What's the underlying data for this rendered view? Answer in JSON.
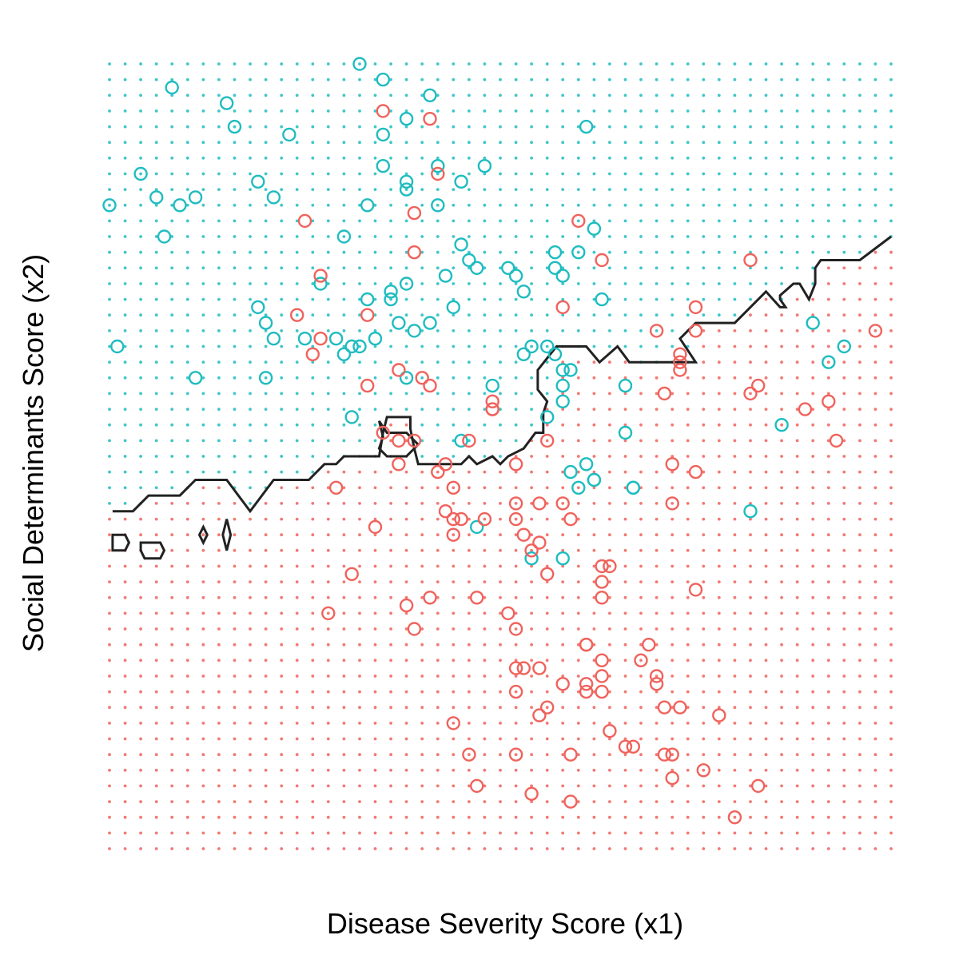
{
  "chart_data": {
    "type": "scatter",
    "title": "",
    "xlabel": "Disease Severity Score (x1)",
    "ylabel": "Social Determinants Score (x2)",
    "xlim": [
      0,
      1
    ],
    "ylim": [
      0,
      1
    ],
    "axis_ticks": "none",
    "grid": false,
    "legend": "none",
    "colors": {
      "teal": "#1ebcc0",
      "red": "#f0625c",
      "boundary": "#222222"
    },
    "background_grid": {
      "description": "dotted decision-region grid; dots above boundary teal, below red",
      "nx": 50,
      "ny": 50
    },
    "decision_boundary": {
      "main": [
        [
          0.004,
          0.43
        ],
        [
          0.03,
          0.43
        ],
        [
          0.05,
          0.45
        ],
        [
          0.09,
          0.45
        ],
        [
          0.11,
          0.47
        ],
        [
          0.15,
          0.47
        ],
        [
          0.18,
          0.43
        ],
        [
          0.21,
          0.47
        ],
        [
          0.255,
          0.47
        ],
        [
          0.275,
          0.49
        ],
        [
          0.29,
          0.49
        ],
        [
          0.3,
          0.5
        ],
        [
          0.345,
          0.5
        ],
        [
          0.35,
          0.53
        ],
        [
          0.355,
          0.55
        ],
        [
          0.385,
          0.55
        ],
        [
          0.385,
          0.535
        ],
        [
          0.39,
          0.51
        ],
        [
          0.395,
          0.49
        ],
        [
          0.42,
          0.49
        ],
        [
          0.45,
          0.49
        ],
        [
          0.46,
          0.5
        ],
        [
          0.47,
          0.49
        ],
        [
          0.49,
          0.5
        ],
        [
          0.5,
          0.49
        ],
        [
          0.51,
          0.5
        ],
        [
          0.53,
          0.51
        ],
        [
          0.545,
          0.53
        ],
        [
          0.555,
          0.53
        ],
        [
          0.555,
          0.555
        ],
        [
          0.56,
          0.57
        ],
        [
          0.548,
          0.585
        ],
        [
          0.548,
          0.61
        ],
        [
          0.572,
          0.64
        ],
        [
          0.61,
          0.64
        ],
        [
          0.627,
          0.62
        ],
        [
          0.65,
          0.64
        ],
        [
          0.665,
          0.62
        ],
        [
          0.75,
          0.62
        ],
        [
          0.73,
          0.65
        ],
        [
          0.75,
          0.67
        ],
        [
          0.8,
          0.67
        ],
        [
          0.84,
          0.71
        ],
        [
          0.858,
          0.69
        ],
        [
          0.865,
          0.69
        ],
        [
          0.858,
          0.7
        ],
        [
          0.858,
          0.705
        ],
        [
          0.875,
          0.72
        ],
        [
          0.883,
          0.72
        ],
        [
          0.895,
          0.7
        ],
        [
          0.903,
          0.72
        ],
        [
          0.903,
          0.74
        ],
        [
          0.91,
          0.75
        ],
        [
          0.925,
          0.75
        ],
        [
          0.96,
          0.75
        ],
        [
          1.0,
          0.78
        ]
      ],
      "island_upper": [
        [
          0.345,
          0.545
        ],
        [
          0.355,
          0.53
        ],
        [
          0.38,
          0.53
        ],
        [
          0.395,
          0.515
        ],
        [
          0.38,
          0.5
        ],
        [
          0.355,
          0.5
        ],
        [
          0.345,
          0.51
        ],
        [
          0.35,
          0.525
        ]
      ],
      "island_left_1": [
        [
          0.004,
          0.4
        ],
        [
          0.02,
          0.4
        ],
        [
          0.025,
          0.39
        ],
        [
          0.02,
          0.38
        ],
        [
          0.004,
          0.38
        ]
      ],
      "island_left_2": [
        [
          0.04,
          0.39
        ],
        [
          0.065,
          0.39
        ],
        [
          0.07,
          0.38
        ],
        [
          0.065,
          0.37
        ],
        [
          0.045,
          0.37
        ],
        [
          0.04,
          0.38
        ]
      ],
      "island_left_3": [
        [
          0.12,
          0.41
        ],
        [
          0.115,
          0.4
        ],
        [
          0.12,
          0.39
        ],
        [
          0.125,
          0.4
        ]
      ],
      "island_left_4": [
        [
          0.15,
          0.42
        ],
        [
          0.145,
          0.4
        ],
        [
          0.15,
          0.38
        ],
        [
          0.155,
          0.4
        ]
      ]
    },
    "series": [
      {
        "class": "teal",
        "points": [
          [
            0.32,
            1.0
          ],
          [
            0.35,
            0.98
          ],
          [
            0.08,
            0.97
          ],
          [
            0.15,
            0.95
          ],
          [
            0.41,
            0.96
          ],
          [
            0.16,
            0.92
          ],
          [
            0.23,
            0.91
          ],
          [
            0.38,
            0.93
          ],
          [
            0.35,
            0.91
          ],
          [
            0.61,
            0.92
          ],
          [
            0.04,
            0.86
          ],
          [
            0.35,
            0.87
          ],
          [
            0.42,
            0.87
          ],
          [
            0.48,
            0.87
          ],
          [
            0.19,
            0.85
          ],
          [
            0.38,
            0.85
          ],
          [
            0.06,
            0.83
          ],
          [
            0.11,
            0.83
          ],
          [
            0.38,
            0.84
          ],
          [
            0.45,
            0.85
          ],
          [
            0.0,
            0.82
          ],
          [
            0.09,
            0.82
          ],
          [
            0.21,
            0.83
          ],
          [
            0.33,
            0.82
          ],
          [
            0.42,
            0.82
          ],
          [
            0.62,
            0.79
          ],
          [
            0.07,
            0.78
          ],
          [
            0.3,
            0.78
          ],
          [
            0.45,
            0.77
          ],
          [
            0.46,
            0.75
          ],
          [
            0.57,
            0.76
          ],
          [
            0.6,
            0.76
          ],
          [
            0.47,
            0.74
          ],
          [
            0.51,
            0.74
          ],
          [
            0.27,
            0.72
          ],
          [
            0.38,
            0.72
          ],
          [
            0.57,
            0.74
          ],
          [
            0.58,
            0.73
          ],
          [
            0.36,
            0.71
          ],
          [
            0.43,
            0.73
          ],
          [
            0.52,
            0.73
          ],
          [
            0.53,
            0.71
          ],
          [
            0.36,
            0.7
          ],
          [
            0.33,
            0.7
          ],
          [
            0.19,
            0.69
          ],
          [
            0.44,
            0.69
          ],
          [
            0.63,
            0.7
          ],
          [
            0.2,
            0.67
          ],
          [
            0.37,
            0.67
          ],
          [
            0.41,
            0.67
          ],
          [
            0.39,
            0.66
          ],
          [
            0.21,
            0.65
          ],
          [
            0.25,
            0.65
          ],
          [
            0.29,
            0.65
          ],
          [
            0.32,
            0.64
          ],
          [
            0.31,
            0.64
          ],
          [
            0.34,
            0.65
          ],
          [
            0.3,
            0.63
          ],
          [
            0.54,
            0.64
          ],
          [
            0.56,
            0.64
          ],
          [
            0.53,
            0.63
          ],
          [
            0.57,
            0.63
          ],
          [
            0.01,
            0.64
          ],
          [
            0.11,
            0.6
          ],
          [
            0.2,
            0.6
          ],
          [
            0.38,
            0.6
          ],
          [
            0.59,
            0.61
          ],
          [
            0.49,
            0.59
          ],
          [
            0.58,
            0.61
          ],
          [
            0.58,
            0.59
          ],
          [
            0.66,
            0.59
          ],
          [
            0.31,
            0.55
          ],
          [
            0.45,
            0.52
          ],
          [
            0.58,
            0.57
          ],
          [
            0.56,
            0.55
          ],
          [
            0.66,
            0.53
          ],
          [
            0.86,
            0.54
          ],
          [
            0.59,
            0.48
          ],
          [
            0.61,
            0.49
          ],
          [
            0.62,
            0.47
          ],
          [
            0.62,
            0.47
          ],
          [
            0.6,
            0.46
          ],
          [
            0.67,
            0.46
          ],
          [
            0.67,
            0.46
          ],
          [
            0.82,
            0.43
          ],
          [
            0.47,
            0.41
          ],
          [
            0.54,
            0.37
          ],
          [
            0.58,
            0.37
          ],
          [
            0.9,
            0.67
          ],
          [
            0.94,
            0.64
          ],
          [
            0.92,
            0.62
          ]
        ]
      },
      {
        "class": "red",
        "points": [
          [
            0.35,
            0.94
          ],
          [
            0.41,
            0.93
          ],
          [
            0.42,
            0.86
          ],
          [
            0.39,
            0.81
          ],
          [
            0.25,
            0.8
          ],
          [
            0.6,
            0.8
          ],
          [
            0.39,
            0.76
          ],
          [
            0.63,
            0.75
          ],
          [
            0.27,
            0.73
          ],
          [
            0.82,
            0.75
          ],
          [
            0.75,
            0.69
          ],
          [
            0.24,
            0.68
          ],
          [
            0.33,
            0.68
          ],
          [
            0.58,
            0.69
          ],
          [
            0.7,
            0.66
          ],
          [
            0.75,
            0.66
          ],
          [
            0.27,
            0.65
          ],
          [
            0.26,
            0.63
          ],
          [
            0.73,
            0.63
          ],
          [
            0.73,
            0.62
          ],
          [
            0.37,
            0.61
          ],
          [
            0.4,
            0.6
          ],
          [
            0.33,
            0.59
          ],
          [
            0.41,
            0.59
          ],
          [
            0.73,
            0.61
          ],
          [
            0.49,
            0.57
          ],
          [
            0.49,
            0.56
          ],
          [
            0.71,
            0.58
          ],
          [
            0.83,
            0.59
          ],
          [
            0.98,
            0.66
          ],
          [
            0.82,
            0.58
          ],
          [
            0.89,
            0.56
          ],
          [
            0.92,
            0.57
          ],
          [
            0.49,
            0.56
          ],
          [
            0.35,
            0.53
          ],
          [
            0.37,
            0.52
          ],
          [
            0.39,
            0.52
          ],
          [
            0.46,
            0.52
          ],
          [
            0.56,
            0.52
          ],
          [
            0.37,
            0.49
          ],
          [
            0.43,
            0.49
          ],
          [
            0.52,
            0.49
          ],
          [
            0.42,
            0.48
          ],
          [
            0.72,
            0.49
          ],
          [
            0.75,
            0.48
          ],
          [
            0.93,
            0.52
          ],
          [
            0.29,
            0.46
          ],
          [
            0.44,
            0.46
          ],
          [
            0.52,
            0.44
          ],
          [
            0.55,
            0.44
          ],
          [
            0.58,
            0.44
          ],
          [
            0.72,
            0.44
          ],
          [
            0.43,
            0.43
          ],
          [
            0.44,
            0.42
          ],
          [
            0.45,
            0.42
          ],
          [
            0.48,
            0.42
          ],
          [
            0.52,
            0.42
          ],
          [
            0.59,
            0.42
          ],
          [
            0.34,
            0.41
          ],
          [
            0.44,
            0.4
          ],
          [
            0.53,
            0.4
          ],
          [
            0.55,
            0.39
          ],
          [
            0.54,
            0.38
          ],
          [
            0.31,
            0.35
          ],
          [
            0.56,
            0.35
          ],
          [
            0.63,
            0.36
          ],
          [
            0.64,
            0.36
          ],
          [
            0.63,
            0.34
          ],
          [
            0.75,
            0.33
          ],
          [
            0.41,
            0.32
          ],
          [
            0.47,
            0.32
          ],
          [
            0.51,
            0.3
          ],
          [
            0.38,
            0.31
          ],
          [
            0.63,
            0.32
          ],
          [
            0.28,
            0.3
          ],
          [
            0.39,
            0.28
          ],
          [
            0.52,
            0.28
          ],
          [
            0.61,
            0.26
          ],
          [
            0.61,
            0.26
          ],
          [
            0.69,
            0.26
          ],
          [
            0.63,
            0.24
          ],
          [
            0.68,
            0.24
          ],
          [
            0.52,
            0.23
          ],
          [
            0.55,
            0.23
          ],
          [
            0.53,
            0.23
          ],
          [
            0.61,
            0.21
          ],
          [
            0.63,
            0.22
          ],
          [
            0.7,
            0.22
          ],
          [
            0.58,
            0.21
          ],
          [
            0.7,
            0.21
          ],
          [
            0.52,
            0.2
          ],
          [
            0.61,
            0.2
          ],
          [
            0.71,
            0.18
          ],
          [
            0.73,
            0.18
          ],
          [
            0.55,
            0.17
          ],
          [
            0.64,
            0.15
          ],
          [
            0.63,
            0.2
          ],
          [
            0.71,
            0.12
          ],
          [
            0.72,
            0.12
          ],
          [
            0.76,
            0.1
          ],
          [
            0.44,
            0.16
          ],
          [
            0.78,
            0.17
          ],
          [
            0.52,
            0.12
          ],
          [
            0.59,
            0.12
          ],
          [
            0.72,
            0.09
          ],
          [
            0.54,
            0.07
          ],
          [
            0.59,
            0.06
          ],
          [
            0.46,
            0.12
          ],
          [
            0.66,
            0.13
          ],
          [
            0.67,
            0.13
          ],
          [
            0.56,
            0.18
          ],
          [
            0.8,
            0.04
          ],
          [
            0.83,
            0.08
          ],
          [
            0.47,
            0.08
          ]
        ]
      }
    ]
  }
}
